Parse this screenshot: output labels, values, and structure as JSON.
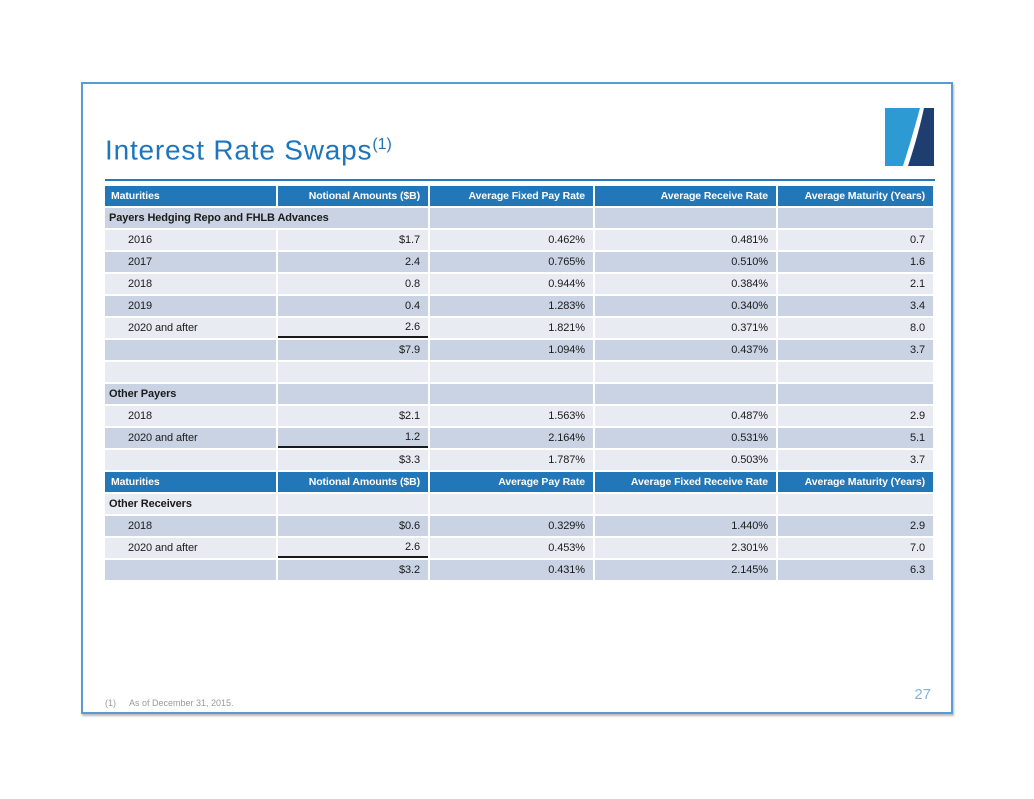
{
  "page": {
    "number": "27"
  },
  "slide": {
    "title": "Interest Rate Swaps",
    "title_sup": "(1)",
    "footnote": {
      "marker": "(1)",
      "text": "As of December 31, 2015."
    }
  },
  "logo": {
    "description": "company-logo square with light blue and navy diagonal swoosh",
    "light_color": "#2E9AD4",
    "dark_color": "#1D3E6E"
  },
  "colors": {
    "title_blue": "#1D76BD",
    "header_bg": "#2277B8",
    "header_text": "#FFFFFF",
    "row_dark": "#C9D3E3",
    "row_light": "#E9EBF2",
    "slide_border": "#5B9BD5",
    "page_number": "#85B4DC",
    "footnote_gray": "#999A9C",
    "sum_underline": "#1A1A1A"
  },
  "table": {
    "rows": [
      {
        "type": "header",
        "cells": [
          "Maturities",
          "Notional Amounts ($B)",
          "Average Fixed Pay Rate",
          "Average Receive Rate",
          "Average Maturity (Years)"
        ]
      },
      {
        "type": "section",
        "shade": "dark",
        "merge": true,
        "cells": [
          "Payers Hedging Repo and FHLB Advances",
          "",
          "",
          "",
          ""
        ]
      },
      {
        "type": "data",
        "shade": "light",
        "cells": [
          "2016",
          "$1.7",
          "0.462%",
          "0.481%",
          "0.7"
        ]
      },
      {
        "type": "data",
        "shade": "dark",
        "cells": [
          "2017",
          "2.4",
          "0.765%",
          "0.510%",
          "1.6"
        ]
      },
      {
        "type": "data",
        "shade": "light",
        "cells": [
          "2018",
          "0.8",
          "0.944%",
          "0.384%",
          "2.1"
        ]
      },
      {
        "type": "data",
        "shade": "dark",
        "cells": [
          "2019",
          "0.4",
          "1.283%",
          "0.340%",
          "3.4"
        ]
      },
      {
        "type": "data",
        "shade": "light",
        "underline_col": 1,
        "cells": [
          "2020 and after",
          "2.6",
          "1.821%",
          "0.371%",
          "8.0"
        ]
      },
      {
        "type": "total",
        "shade": "dark",
        "cells": [
          "",
          "$7.9",
          "1.094%",
          "0.437%",
          "3.7"
        ]
      },
      {
        "type": "empty",
        "shade": "light",
        "cells": [
          "",
          "",
          "",
          "",
          ""
        ]
      },
      {
        "type": "section",
        "shade": "dark",
        "cells": [
          "Other Payers",
          "",
          "",
          "",
          ""
        ]
      },
      {
        "type": "data",
        "shade": "light",
        "cells": [
          "2018",
          "$2.1",
          "1.563%",
          "0.487%",
          "2.9"
        ]
      },
      {
        "type": "data",
        "shade": "dark",
        "underline_col": 1,
        "cells": [
          "2020 and after",
          "1.2",
          "2.164%",
          "0.531%",
          "5.1"
        ]
      },
      {
        "type": "total",
        "shade": "light",
        "cells": [
          "",
          "$3.3",
          "1.787%",
          "0.503%",
          "3.7"
        ]
      },
      {
        "type": "header",
        "cells": [
          "Maturities",
          "Notional Amounts ($B)",
          "Average Pay Rate",
          "Average Fixed Receive Rate",
          "Average Maturity (Years)"
        ]
      },
      {
        "type": "section",
        "shade": "light",
        "cells": [
          "Other Receivers",
          "",
          "",
          "",
          ""
        ]
      },
      {
        "type": "data",
        "shade": "dark",
        "cells": [
          "2018",
          "$0.6",
          "0.329%",
          "1.440%",
          "2.9"
        ]
      },
      {
        "type": "data",
        "shade": "light",
        "underline_col": 1,
        "cells": [
          "2020 and after",
          "2.6",
          "0.453%",
          "2.301%",
          "7.0"
        ]
      },
      {
        "type": "total",
        "shade": "dark",
        "cells": [
          "",
          "$3.2",
          "0.431%",
          "2.145%",
          "6.3"
        ]
      }
    ]
  }
}
